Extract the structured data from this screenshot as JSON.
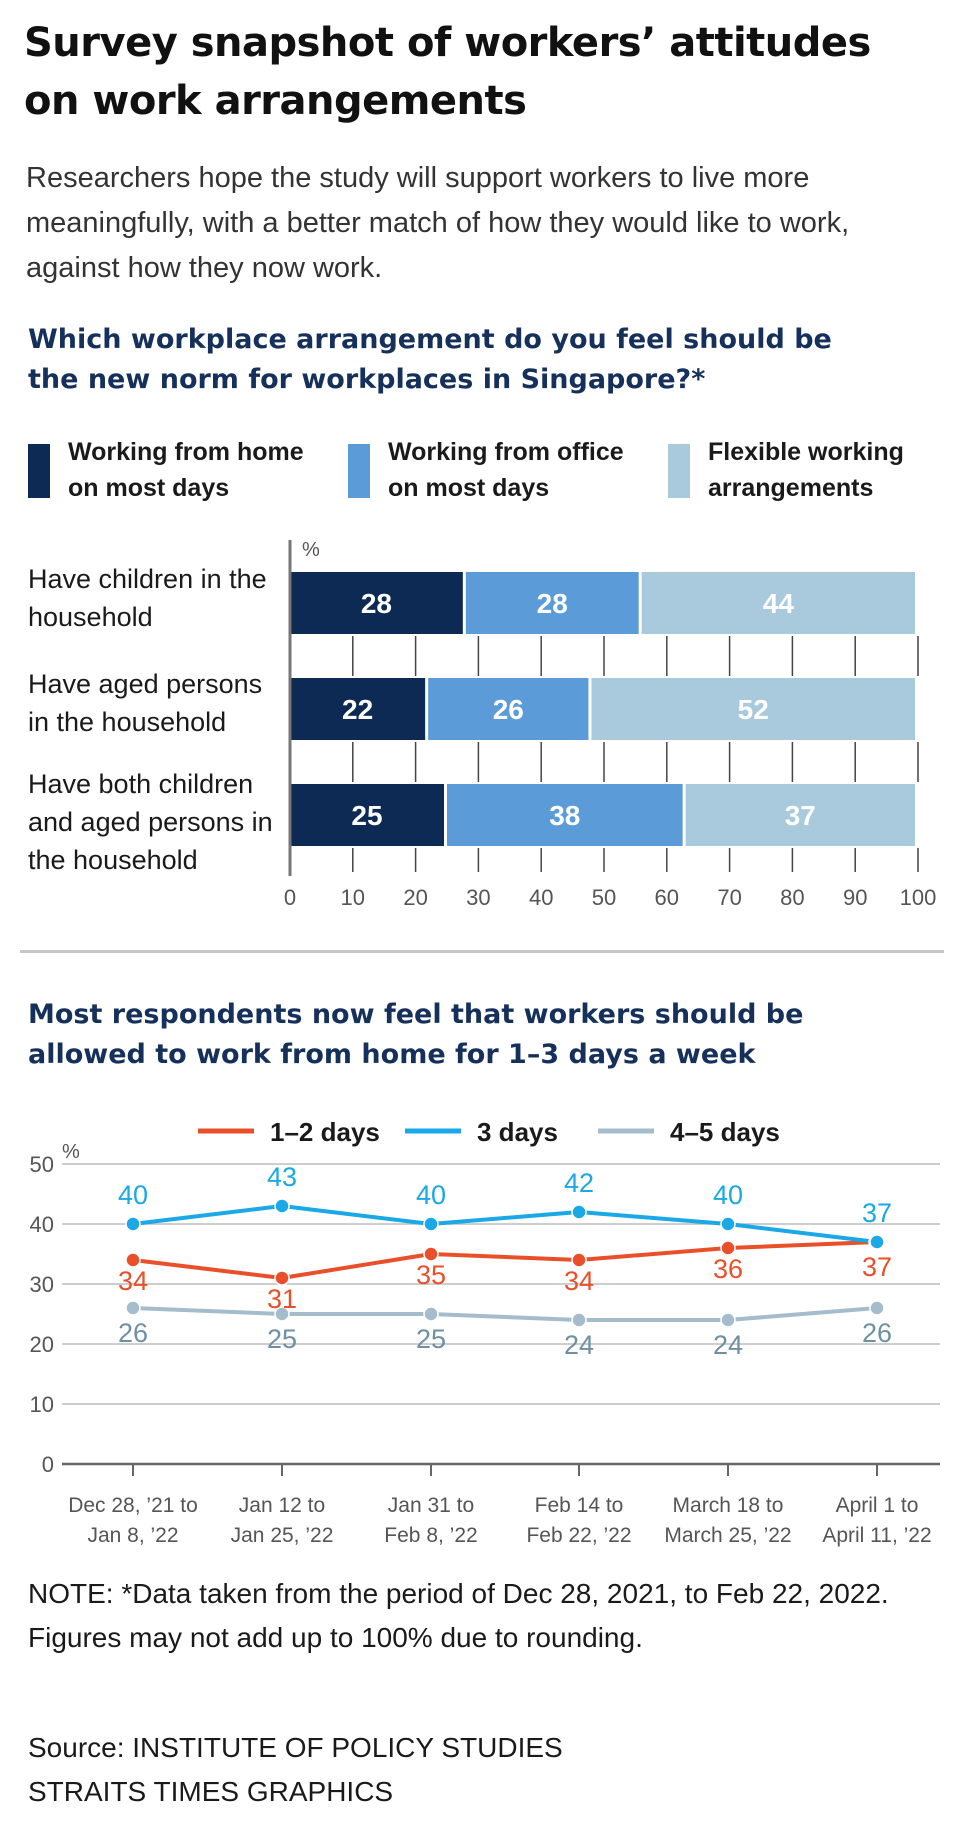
{
  "title": "Survey snapshot of workers’ attitudes on work arrangements",
  "intro": "Researchers hope the study will support workers to live more meaningfully, with a better match of how they would like to work, against how they now work.",
  "colors": {
    "dark_navy": "#0d2a55",
    "mid_blue": "#5b9bd8",
    "light_blue": "#a9c9dc",
    "line_red": "#e9502a",
    "line_cyan": "#1aa8e6",
    "line_gray": "#a4bccc"
  },
  "chart_data": [
    {
      "type": "bar",
      "orientation": "horizontal",
      "stacked": true,
      "title": "Which workplace arrangement do you feel should be the new norm for workplaces in Singapore?*",
      "unit": "%",
      "categories": [
        "Have children in the household",
        "Have aged persons in the household",
        "Have both children and aged persons in the household"
      ],
      "series": [
        {
          "name": "Working from home on most days",
          "values": [
            28,
            22,
            25
          ]
        },
        {
          "name": "Working from office on most days",
          "values": [
            28,
            26,
            38
          ]
        },
        {
          "name": "Flexible working arrangements",
          "values": [
            44,
            52,
            37
          ]
        }
      ],
      "xlim": [
        0,
        100
      ],
      "xticks": [
        "0",
        "10",
        "20",
        "30",
        "40",
        "50",
        "60",
        "70",
        "80",
        "90",
        "100"
      ],
      "legend_position": "top"
    },
    {
      "type": "line",
      "title": "Most respondents now feel that workers should be allowed to work from home for 1–3 days a week",
      "unit": "%",
      "categories": [
        "Dec 28, ’21 to Jan 8, ’22",
        "Jan 12 to Jan 25, ’22",
        "Jan 31 to Feb 8, ’22",
        "Feb 14 to Feb 22, ’22",
        "March 18 to March 25, ’22",
        "April 1 to April 11, ’22"
      ],
      "series": [
        {
          "name": "1–2 days",
          "values": [
            34,
            31,
            35,
            34,
            36,
            37
          ]
        },
        {
          "name": "3 days",
          "values": [
            40,
            43,
            40,
            42,
            40,
            37
          ]
        },
        {
          "name": "4–5 days",
          "values": [
            26,
            25,
            25,
            24,
            24,
            26
          ]
        }
      ],
      "ylim": [
        0,
        50
      ],
      "yticks": [
        "0",
        "10",
        "20",
        "30",
        "40",
        "50"
      ],
      "grid": true,
      "legend_position": "top"
    }
  ],
  "chart1": {
    "title": "Which workplace arrangement do you feel should be the new norm for workplaces in Singapore?*",
    "legend": [
      "Working from home on most days",
      "Working from office on most days",
      "Flexible working arrangements"
    ],
    "row_labels": [
      "Have children in the household",
      "Have aged persons in the household",
      "Have both children and aged persons in the household"
    ],
    "unit": "%"
  },
  "chart2": {
    "title": "Most respondents now feel that workers should be allowed to work from home for 1–3 days a week",
    "unit": "%"
  },
  "note": "NOTE: *Data taken from the period of Dec 28, 2021, to Feb 22, 2022. Figures may not add up to 100% due to rounding.",
  "source": "Source: INSTITUTE OF POLICY STUDIES",
  "credit": "STRAITS TIMES GRAPHICS"
}
